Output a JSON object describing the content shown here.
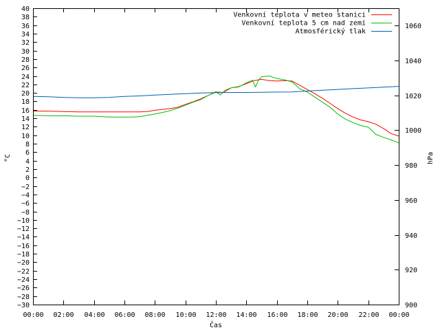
{
  "chart_data": {
    "type": "line",
    "title": "",
    "xlabel": "Čas",
    "ylabel": "°C",
    "y2label": "hPa",
    "xlim": [
      0,
      24
    ],
    "ylim": [
      -30,
      40
    ],
    "y2lim": [
      900,
      1070
    ],
    "grid": false,
    "legend_position": "top-right",
    "x_tick_labels": [
      "00:00",
      "02:00",
      "04:00",
      "06:00",
      "08:00",
      "10:00",
      "12:00",
      "14:00",
      "16:00",
      "18:00",
      "20:00",
      "22:00",
      "00:00"
    ],
    "y_ticks": [
      -30,
      -28,
      -26,
      -24,
      -22,
      -20,
      -18,
      -16,
      -14,
      -12,
      -10,
      -8,
      -6,
      -4,
      -2,
      0,
      2,
      4,
      6,
      8,
      10,
      12,
      14,
      16,
      18,
      20,
      22,
      24,
      26,
      28,
      30,
      32,
      34,
      36,
      38,
      40
    ],
    "y2_ticks": [
      900,
      920,
      940,
      960,
      980,
      1000,
      1020,
      1040,
      1060
    ],
    "series": [
      {
        "name": "Venkovní teplota v meteo stanici",
        "color": "#ff0000",
        "axis": "left",
        "x": [
          0,
          1,
          2,
          3,
          4,
          5,
          6,
          7,
          7.5,
          8,
          8.5,
          9,
          9.5,
          10,
          10.5,
          11,
          11.5,
          12,
          12.5,
          13,
          13.5,
          14,
          14.5,
          15,
          15.5,
          16,
          16.5,
          17,
          17.5,
          18,
          18.5,
          19,
          19.5,
          20,
          20.5,
          21,
          21.5,
          22,
          22.5,
          23,
          23.5,
          24
        ],
        "y": [
          15.7,
          15.7,
          15.6,
          15.5,
          15.5,
          15.5,
          15.5,
          15.5,
          15.6,
          15.9,
          16.1,
          16.3,
          16.6,
          17.3,
          17.9,
          18.6,
          19.4,
          20.2,
          20.1,
          21.2,
          21.5,
          22.2,
          22.9,
          23.2,
          22.9,
          22.8,
          22.9,
          22.8,
          21.8,
          20.8,
          19.8,
          18.7,
          17.5,
          16.3,
          15.2,
          14.3,
          13.6,
          13.2,
          12.6,
          11.6,
          10.4,
          9.8
        ]
      },
      {
        "name": "Venkovní teplota 5 cm nad zemí",
        "color": "#00c000",
        "axis": "left",
        "x": [
          0,
          1,
          2,
          3,
          4,
          5,
          6,
          6.5,
          7,
          7.5,
          8,
          8.5,
          9,
          9.5,
          10,
          10.5,
          11,
          11.5,
          12,
          12.3,
          12.6,
          13,
          13.5,
          14,
          14.4,
          14.6,
          14.8,
          15,
          15.5,
          16,
          16.5,
          17,
          17.5,
          18,
          18.5,
          19,
          19.5,
          20,
          20.5,
          21,
          21.5,
          22,
          22.5,
          23,
          23.5,
          24
        ],
        "y": [
          14.7,
          14.6,
          14.6,
          14.5,
          14.5,
          14.3,
          14.3,
          14.3,
          14.4,
          14.7,
          15.0,
          15.4,
          15.8,
          16.4,
          17.1,
          17.8,
          18.4,
          19.4,
          20.3,
          19.5,
          20.6,
          21.2,
          21.4,
          22.4,
          23.0,
          21.4,
          23.1,
          23.8,
          24.0,
          23.4,
          23.1,
          22.6,
          21.0,
          20.2,
          19.0,
          17.8,
          16.6,
          15.0,
          13.8,
          13.0,
          12.3,
          11.9,
          10.2,
          9.5,
          8.9,
          8.2
        ]
      },
      {
        "name": "Atmosférický tlak",
        "color": "#0060ad",
        "axis": "right",
        "x": [
          0,
          1,
          2,
          3,
          4,
          5,
          6,
          7,
          8,
          9,
          10,
          11,
          12,
          13,
          14,
          15,
          16,
          17,
          18,
          19,
          20,
          21,
          22,
          23,
          24
        ],
        "y": [
          1019.4,
          1019.2,
          1018.9,
          1018.6,
          1018.6,
          1018.9,
          1019.4,
          1019.7,
          1020.2,
          1020.6,
          1021.0,
          1021.4,
          1021.6,
          1021.7,
          1021.7,
          1021.8,
          1021.9,
          1022.0,
          1022.5,
          1023.0,
          1023.4,
          1023.9,
          1024.3,
          1024.7,
          1025.2
        ]
      }
    ]
  }
}
